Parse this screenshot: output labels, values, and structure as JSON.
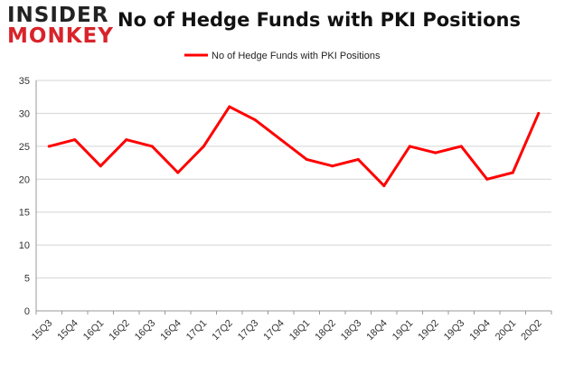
{
  "header": {
    "logo_top": "INSIDER",
    "logo_bottom": "MONKEY",
    "title": "No of Hedge Funds with PKI Positions"
  },
  "colors": {
    "series": "#ff0000",
    "grid": "#d4d4d4",
    "logo_accent": "#d8232a"
  },
  "chart_data": {
    "type": "line",
    "title": "No of Hedge Funds with PKI Positions",
    "xlabel": "",
    "ylabel": "",
    "ylim": [
      0,
      35
    ],
    "yticks": [
      0,
      5,
      10,
      15,
      20,
      25,
      30,
      35
    ],
    "grid": "horizontal",
    "legend_position": "top-center",
    "categories": [
      "15Q3",
      "15Q4",
      "16Q1",
      "16Q2",
      "16Q3",
      "16Q4",
      "17Q1",
      "17Q2",
      "17Q3",
      "17Q4",
      "18Q1",
      "18Q2",
      "18Q3",
      "18Q4",
      "19Q1",
      "19Q2",
      "19Q3",
      "19Q4",
      "20Q1",
      "20Q2"
    ],
    "series": [
      {
        "name": "No of Hedge Funds with PKI Positions",
        "values": [
          25,
          26,
          22,
          26,
          25,
          21,
          25,
          31,
          29,
          26,
          23,
          22,
          23,
          19,
          25,
          24,
          25,
          20,
          21,
          30
        ]
      }
    ]
  }
}
